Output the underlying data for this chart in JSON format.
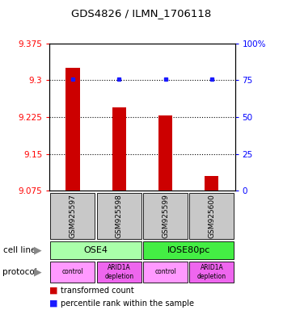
{
  "title": "GDS4826 / ILMN_1706118",
  "samples": [
    "GSM925597",
    "GSM925598",
    "GSM925599",
    "GSM925600"
  ],
  "bar_values": [
    9.325,
    9.245,
    9.228,
    9.105
  ],
  "percentile_values": [
    76,
    76,
    76,
    76
  ],
  "ymin": 9.075,
  "ymax": 9.375,
  "yticks": [
    9.075,
    9.15,
    9.225,
    9.3,
    9.375
  ],
  "ytick_labels": [
    "9.075",
    "9.15",
    "9.225",
    "9.3",
    "9.375"
  ],
  "right_yticks": [
    0,
    25,
    50,
    75,
    100
  ],
  "right_ytick_labels": [
    "0",
    "25",
    "50",
    "75",
    "100%"
  ],
  "bar_color": "#cc0000",
  "dot_color": "#1a1aff",
  "cell_line_colors_light": "#aaffaa",
  "cell_line_colors_dark": "#44ee44",
  "cell_lines": [
    "OSE4",
    "IOSE80pc"
  ],
  "cell_line_spans": [
    [
      0,
      1
    ],
    [
      2,
      3
    ]
  ],
  "protocol_color_light": "#ff99ff",
  "protocol_color_dark": "#ee66ee",
  "protocols": [
    "control",
    "ARID1A\ndepletion",
    "control",
    "ARID1A\ndepletion"
  ],
  "gray_color": "#c8c8c8",
  "legend_red_label": "transformed count",
  "legend_blue_label": "percentile rank within the sample",
  "cell_line_label": "cell line",
  "protocol_label": "protocol",
  "bar_width": 0.3
}
